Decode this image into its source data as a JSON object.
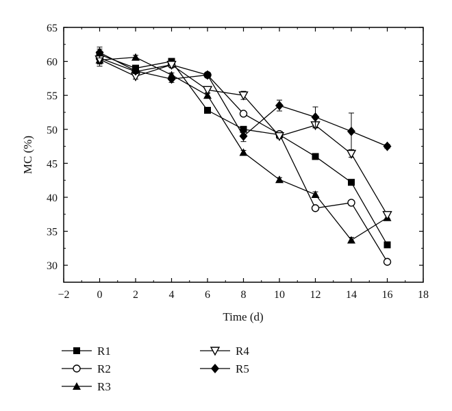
{
  "chart_data": {
    "type": "line",
    "xlabel": "Time (d)",
    "ylabel": "MC (%)",
    "xlim": [
      -2,
      18
    ],
    "ylim": [
      27.5,
      65
    ],
    "xticks": [
      -2,
      0,
      2,
      4,
      6,
      8,
      10,
      12,
      14,
      16,
      18
    ],
    "yticks": [
      30,
      35,
      40,
      45,
      50,
      55,
      60,
      65
    ],
    "x": [
      0,
      2,
      4,
      6,
      8,
      10,
      12,
      14,
      16
    ],
    "legend_position": "below plot",
    "series": [
      {
        "name": "R1",
        "marker": "square-filled",
        "values": [
          61.0,
          59.0,
          60.0,
          52.8,
          50.0,
          49.2,
          46.0,
          42.2,
          33.0
        ],
        "errors": [
          0.8,
          0.4,
          0.4,
          0.3,
          0.4,
          0.3,
          0.3,
          0.3,
          0.4
        ]
      },
      {
        "name": "R2",
        "marker": "circle-open",
        "values": [
          60.5,
          58.5,
          59.5,
          58.0,
          52.3,
          49.3,
          38.4,
          39.2,
          30.5
        ],
        "errors": [
          0.8,
          0.4,
          0.4,
          0.3,
          0.3,
          0.3,
          0.3,
          0.3,
          0.3
        ]
      },
      {
        "name": "R3",
        "marker": "triangle-up-filled",
        "values": [
          60.2,
          60.6,
          58.0,
          55.0,
          46.6,
          42.6,
          40.4,
          33.7,
          37.0
        ],
        "errors": [
          0.6,
          0.3,
          0.3,
          0.3,
          0.3,
          0.3,
          0.4,
          0.4,
          0.4
        ]
      },
      {
        "name": "R4",
        "marker": "triangle-down-open",
        "values": [
          60.3,
          57.8,
          59.5,
          55.8,
          55.0,
          49.0,
          50.6,
          46.4,
          37.4
        ],
        "errors": [
          1.0,
          0.4,
          0.4,
          0.4,
          0.6,
          0.4,
          0.4,
          0.5,
          0.5
        ]
      },
      {
        "name": "R5",
        "marker": "diamond-filled",
        "values": [
          61.3,
          58.6,
          57.4,
          58.0,
          49.0,
          53.5,
          51.8,
          49.7,
          47.5
        ],
        "errors": [
          0.8,
          0.4,
          0.5,
          0.4,
          0.8,
          0.8,
          1.5,
          2.7,
          0.3
        ]
      }
    ]
  }
}
